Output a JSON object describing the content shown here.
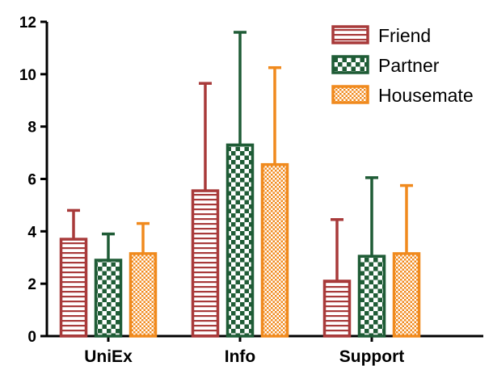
{
  "chart_data": {
    "type": "bar",
    "categories": [
      "UniEx",
      "Info",
      "Support"
    ],
    "series": [
      {
        "name": "Friend",
        "values": [
          3.7,
          5.55,
          2.1
        ],
        "errors": [
          1.1,
          4.1,
          2.35
        ],
        "color": "#a83a3a",
        "pattern": "horizontal-stripes"
      },
      {
        "name": "Partner",
        "values": [
          2.9,
          7.3,
          3.05
        ],
        "errors": [
          1.0,
          4.3,
          3.0
        ],
        "color": "#1f5c36",
        "pattern": "checkerboard"
      },
      {
        "name": "Housemate",
        "values": [
          3.15,
          6.55,
          3.15
        ],
        "errors": [
          1.15,
          3.7,
          2.6
        ],
        "color": "#f08a1e",
        "pattern": "fine-checkerboard"
      }
    ],
    "ylim": [
      0,
      12
    ],
    "yticks": [
      "0",
      "2",
      "4",
      "6",
      "8",
      "10",
      "12"
    ],
    "title": "",
    "xlabel": "",
    "ylabel": "",
    "grid": false,
    "legend_position": "top-right",
    "error_bars": "upper"
  }
}
